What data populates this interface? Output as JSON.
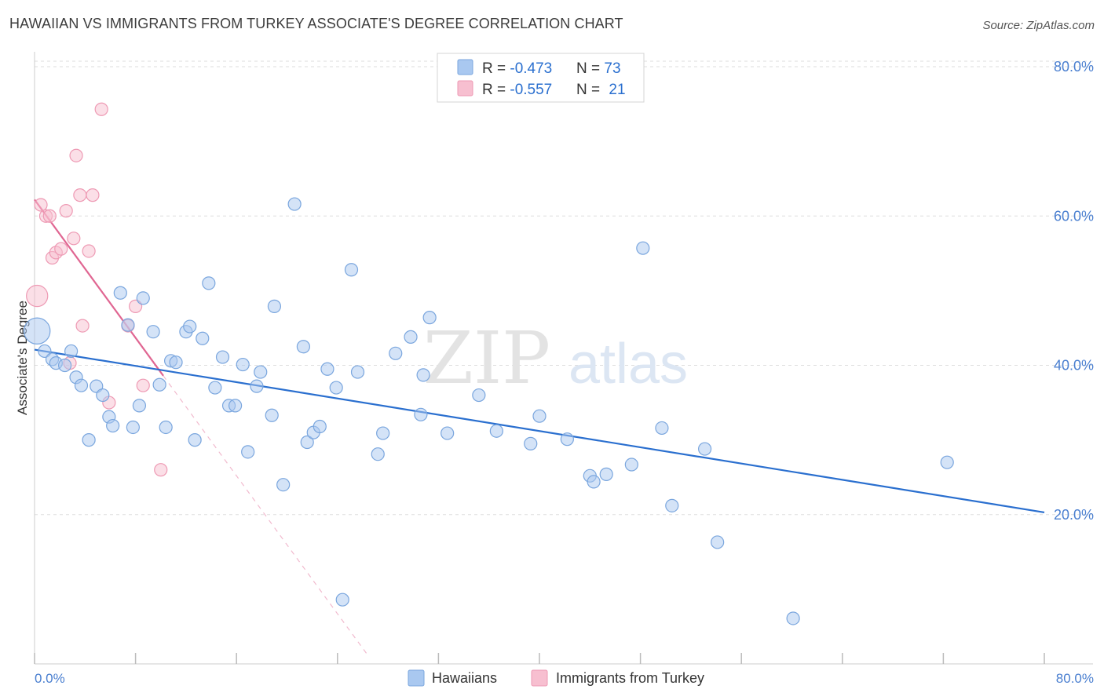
{
  "title": "HAWAIIAN VS IMMIGRANTS FROM TURKEY ASSOCIATE'S DEGREE CORRELATION CHART",
  "source": "Source: ZipAtlas.com",
  "watermark": {
    "zip": "ZIP",
    "atlas": "atlas"
  },
  "colors": {
    "blue_fill": "#a9c8f0",
    "blue_stroke": "#7aa6de",
    "blue_line": "#2a6fcf",
    "pink_fill": "#f7bfd0",
    "pink_stroke": "#ee9ab4",
    "pink_line": "#e06692",
    "tick_label": "#4a7fd0",
    "grid": "#dddddd"
  },
  "legend_top": [
    {
      "r_label": "R = ",
      "r_value": "-0.473",
      "n_label": "N = ",
      "n_value": "73"
    },
    {
      "r_label": "R = ",
      "r_value": "-0.557",
      "n_label": "N = ",
      "n_value": "21"
    }
  ],
  "chart_data": {
    "type": "scatter",
    "title": "HAWAIIAN VS IMMIGRANTS FROM TURKEY ASSOCIATE'S DEGREE CORRELATION CHART",
    "xlabel": "",
    "ylabel": "Associate's Degree",
    "xlim": [
      0,
      80
    ],
    "ylim": [
      0,
      82
    ],
    "x_tick_labels": [
      "0.0%",
      "80.0%"
    ],
    "y_ticks": [
      20,
      40,
      60,
      80
    ],
    "y_tick_labels": [
      "20.0%",
      "40.0%",
      "60.0%",
      "80.0%"
    ],
    "grid": "horizontal dashed",
    "legend_placement": "bottom",
    "series": [
      {
        "name": "Hawaiians",
        "R": -0.473,
        "N": 73,
        "trend": [
          [
            0.0,
            42.1
          ],
          [
            80.0,
            20.3
          ]
        ],
        "points": [
          {
            "x": 0.2,
            "y": 44.6,
            "size": 3
          },
          {
            "x": 0.8,
            "y": 41.9
          },
          {
            "x": 1.4,
            "y": 40.8
          },
          {
            "x": 1.7,
            "y": 40.3
          },
          {
            "x": 2.4,
            "y": 40.0
          },
          {
            "x": 2.9,
            "y": 41.9
          },
          {
            "x": 3.3,
            "y": 38.4
          },
          {
            "x": 3.7,
            "y": 37.3
          },
          {
            "x": 4.3,
            "y": 30.0
          },
          {
            "x": 4.9,
            "y": 37.2
          },
          {
            "x": 5.4,
            "y": 36.0
          },
          {
            "x": 5.9,
            "y": 33.1
          },
          {
            "x": 6.2,
            "y": 31.9
          },
          {
            "x": 6.8,
            "y": 49.7
          },
          {
            "x": 7.4,
            "y": 45.4
          },
          {
            "x": 7.8,
            "y": 31.7
          },
          {
            "x": 8.3,
            "y": 34.6
          },
          {
            "x": 8.6,
            "y": 49.0
          },
          {
            "x": 9.4,
            "y": 44.5
          },
          {
            "x": 9.9,
            "y": 37.4
          },
          {
            "x": 10.4,
            "y": 31.7
          },
          {
            "x": 10.8,
            "y": 40.6
          },
          {
            "x": 11.2,
            "y": 40.4
          },
          {
            "x": 12.0,
            "y": 44.5
          },
          {
            "x": 12.3,
            "y": 45.2
          },
          {
            "x": 12.7,
            "y": 30.0
          },
          {
            "x": 13.3,
            "y": 43.6
          },
          {
            "x": 13.8,
            "y": 51.0
          },
          {
            "x": 14.3,
            "y": 37.0
          },
          {
            "x": 14.9,
            "y": 41.1
          },
          {
            "x": 15.4,
            "y": 34.6
          },
          {
            "x": 15.9,
            "y": 34.6
          },
          {
            "x": 16.5,
            "y": 40.1
          },
          {
            "x": 16.9,
            "y": 28.4
          },
          {
            "x": 17.6,
            "y": 37.2
          },
          {
            "x": 17.9,
            "y": 39.1
          },
          {
            "x": 18.8,
            "y": 33.3
          },
          {
            "x": 19.0,
            "y": 47.9
          },
          {
            "x": 19.7,
            "y": 24.0
          },
          {
            "x": 20.6,
            "y": 61.6
          },
          {
            "x": 21.3,
            "y": 42.5
          },
          {
            "x": 21.6,
            "y": 29.7
          },
          {
            "x": 22.1,
            "y": 31.0
          },
          {
            "x": 22.6,
            "y": 31.8
          },
          {
            "x": 23.2,
            "y": 39.5
          },
          {
            "x": 23.9,
            "y": 37.0
          },
          {
            "x": 24.4,
            "y": 8.6
          },
          {
            "x": 25.1,
            "y": 52.8
          },
          {
            "x": 25.6,
            "y": 39.1
          },
          {
            "x": 27.2,
            "y": 28.1
          },
          {
            "x": 27.6,
            "y": 30.9
          },
          {
            "x": 28.6,
            "y": 41.6
          },
          {
            "x": 29.8,
            "y": 43.8
          },
          {
            "x": 30.6,
            "y": 33.4
          },
          {
            "x": 30.8,
            "y": 38.7
          },
          {
            "x": 31.3,
            "y": 46.4
          },
          {
            "x": 32.7,
            "y": 30.9
          },
          {
            "x": 35.2,
            "y": 36.0
          },
          {
            "x": 36.6,
            "y": 31.2
          },
          {
            "x": 39.3,
            "y": 29.5
          },
          {
            "x": 40.0,
            "y": 33.2
          },
          {
            "x": 42.2,
            "y": 30.1
          },
          {
            "x": 44.0,
            "y": 25.2
          },
          {
            "x": 44.3,
            "y": 24.4
          },
          {
            "x": 45.3,
            "y": 25.4
          },
          {
            "x": 47.3,
            "y": 26.7
          },
          {
            "x": 48.2,
            "y": 55.7
          },
          {
            "x": 49.7,
            "y": 31.6
          },
          {
            "x": 50.5,
            "y": 21.2
          },
          {
            "x": 53.1,
            "y": 28.8
          },
          {
            "x": 54.1,
            "y": 16.3
          },
          {
            "x": 60.1,
            "y": 6.1
          },
          {
            "x": 72.3,
            "y": 27.0
          }
        ]
      },
      {
        "name": "Immigrants from Turkey",
        "R": -0.557,
        "N": 21,
        "trend": [
          [
            0.0,
            62.2
          ],
          [
            10.2,
            38.6
          ]
        ],
        "trend_extension": [
          [
            10.2,
            38.6
          ],
          [
            26.3,
            1.4
          ]
        ],
        "points": [
          {
            "x": 0.2,
            "y": 49.3,
            "size": 2
          },
          {
            "x": 0.5,
            "y": 61.5
          },
          {
            "x": 0.9,
            "y": 60.0
          },
          {
            "x": 1.2,
            "y": 60.0
          },
          {
            "x": 1.4,
            "y": 54.4
          },
          {
            "x": 1.7,
            "y": 55.1
          },
          {
            "x": 2.1,
            "y": 55.6
          },
          {
            "x": 2.5,
            "y": 60.7
          },
          {
            "x": 2.8,
            "y": 40.3
          },
          {
            "x": 3.1,
            "y": 57.0
          },
          {
            "x": 3.3,
            "y": 68.1
          },
          {
            "x": 3.6,
            "y": 62.8
          },
          {
            "x": 3.8,
            "y": 45.3
          },
          {
            "x": 4.3,
            "y": 55.3
          },
          {
            "x": 4.6,
            "y": 62.8
          },
          {
            "x": 5.3,
            "y": 74.3
          },
          {
            "x": 5.9,
            "y": 35.0
          },
          {
            "x": 7.4,
            "y": 45.3
          },
          {
            "x": 8.0,
            "y": 47.9
          },
          {
            "x": 8.6,
            "y": 37.3
          },
          {
            "x": 10.0,
            "y": 26.0
          }
        ]
      }
    ]
  }
}
